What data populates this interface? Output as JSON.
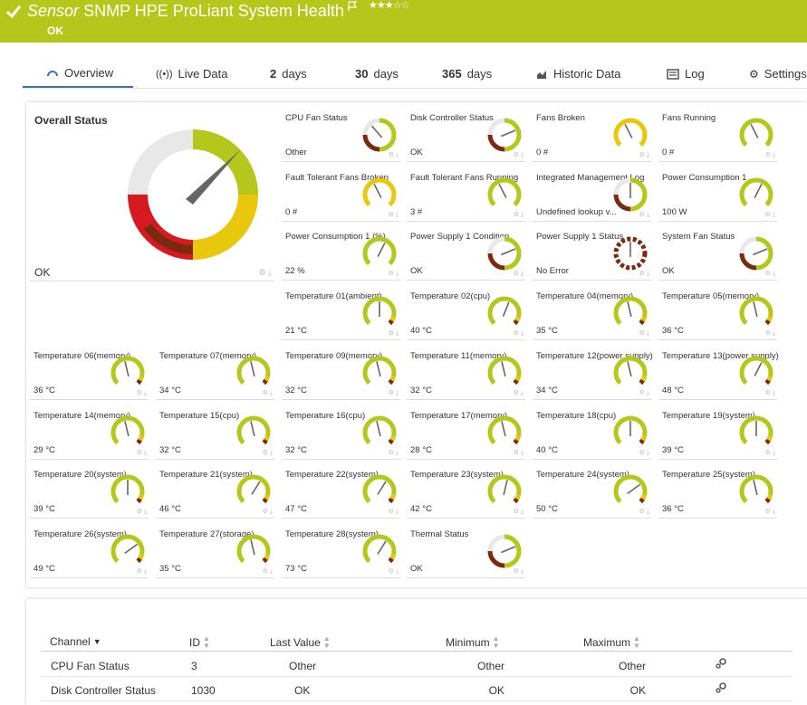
{
  "header": {
    "title_prefix": "Sensor",
    "title": "SNMP HPE ProLiant System Health",
    "status": "OK",
    "rating_stars": "★★★☆☆",
    "accent_color": "#b4c71a"
  },
  "tabs": [
    {
      "label": "Overview",
      "icon": "gauge-icon",
      "active": true
    },
    {
      "label": "Live Data",
      "icon": "live-data-icon"
    },
    {
      "num": "2",
      "label": "days"
    },
    {
      "num": "30",
      "label": "days"
    },
    {
      "num": "365",
      "label": "days"
    },
    {
      "label": "Historic Data",
      "icon": "chart-icon"
    },
    {
      "label": "Log",
      "icon": "log-icon"
    },
    {
      "label": "Settings",
      "icon": "gear-icon"
    }
  ],
  "overall": {
    "title": "Overall Status",
    "value": "OK"
  },
  "gauges": [
    {
      "name": "CPU Fan Status",
      "value": "Other",
      "style": "status",
      "needle": 0.35
    },
    {
      "name": "Disk Controller Status",
      "value": "OK",
      "style": "status",
      "needle": 0.75
    },
    {
      "name": "Fans Broken",
      "value": "0 #",
      "style": "yellow",
      "needle": 0.4
    },
    {
      "name": "Fans Running",
      "value": "0 #",
      "style": "green",
      "needle": 0.4
    },
    {
      "name": "Fault Tolerant Fans Broken",
      "value": "0 #",
      "style": "yellow",
      "needle": 0.4
    },
    {
      "name": "Fault Tolerant Fans Running",
      "value": "3 #",
      "style": "green",
      "needle": 0.4
    },
    {
      "name": "Integrated Management Log",
      "value": "Undefined lookup v...",
      "style": "status",
      "needle": 0.5
    },
    {
      "name": "Power Consumption 1",
      "value": "100 W",
      "style": "green",
      "needle": 0.6
    },
    {
      "name": "Power Consumption 1 (%)",
      "value": "22 %",
      "style": "green",
      "needle": 0.6
    },
    {
      "name": "Power Supply 1 Condition",
      "value": "OK",
      "style": "status",
      "needle": 0.75
    },
    {
      "name": "Power Supply 1 Status",
      "value": "No Error",
      "style": "dashed",
      "needle": 0.5
    },
    {
      "name": "System Fan Status",
      "value": "OK",
      "style": "status",
      "needle": 0.75
    },
    {
      "name": "Temperature 01(ambient)",
      "value": "21 °C",
      "style": "temp",
      "needle": 0.5
    },
    {
      "name": "Temperature 02(cpu)",
      "value": "40 °C",
      "style": "temp",
      "needle": 0.58
    },
    {
      "name": "Temperature 04(memory)",
      "value": "35 °C",
      "style": "temp",
      "needle": 0.45
    },
    {
      "name": "Temperature 05(memory)",
      "value": "36 °C",
      "style": "temp",
      "needle": 0.45
    },
    {
      "name": "Temperature 06(memory)",
      "value": "36 °C",
      "style": "temp",
      "needle": 0.45
    },
    {
      "name": "Temperature 07(memory)",
      "value": "34 °C",
      "style": "temp",
      "needle": 0.45
    },
    {
      "name": "Temperature 09(memory)",
      "value": "32 °C",
      "style": "temp",
      "needle": 0.45
    },
    {
      "name": "Temperature 11(memory)",
      "value": "32 °C",
      "style": "temp",
      "needle": 0.45
    },
    {
      "name": "Temperature 12(power supply)",
      "value": "34 °C",
      "style": "temp",
      "needle": 0.45
    },
    {
      "name": "Temperature 13(power supply)",
      "value": "48 °C",
      "style": "temp",
      "needle": 0.6
    },
    {
      "name": "Temperature 14(memory)",
      "value": "29 °C",
      "style": "temp",
      "needle": 0.45
    },
    {
      "name": "Temperature 15(cpu)",
      "value": "32 °C",
      "style": "temp",
      "needle": 0.45
    },
    {
      "name": "Temperature 16(cpu)",
      "value": "32 °C",
      "style": "temp",
      "needle": 0.45
    },
    {
      "name": "Temperature 17(memory)",
      "value": "28 °C",
      "style": "temp",
      "needle": 0.45
    },
    {
      "name": "Temperature 18(cpu)",
      "value": "40 °C",
      "style": "temp",
      "needle": 0.5
    },
    {
      "name": "Temperature 19(system)",
      "value": "39 °C",
      "style": "temp",
      "needle": 0.5
    },
    {
      "name": "Temperature 20(system)",
      "value": "39 °C",
      "style": "temp",
      "needle": 0.5
    },
    {
      "name": "Temperature 21(system)",
      "value": "46 °C",
      "style": "temp",
      "needle": 0.62
    },
    {
      "name": "Temperature 22(system)",
      "value": "47 °C",
      "style": "temp",
      "needle": 0.62
    },
    {
      "name": "Temperature 23(system)",
      "value": "42 °C",
      "style": "temp",
      "needle": 0.55
    },
    {
      "name": "Temperature 24(system)",
      "value": "50 °C",
      "style": "temp",
      "needle": 0.7
    },
    {
      "name": "Temperature 25(system)",
      "value": "36 °C",
      "style": "temp",
      "needle": 0.45
    },
    {
      "name": "Temperature 26(system)",
      "value": "49 °C",
      "style": "temp",
      "needle": 0.7
    },
    {
      "name": "Temperature 27(storage)",
      "value": "35 °C",
      "style": "temp",
      "needle": 0.45
    },
    {
      "name": "Temperature 28(system)",
      "value": "73 °C",
      "style": "temp",
      "needle": 0.62
    },
    {
      "name": "Thermal Status",
      "value": "OK",
      "style": "status",
      "needle": 0.75
    }
  ],
  "table": {
    "headers": {
      "channel": "Channel",
      "id": "ID",
      "last_value": "Last Value",
      "minimum": "Minimum",
      "maximum": "Maximum"
    },
    "rows": [
      {
        "channel": "CPU Fan Status",
        "id": "3",
        "last_value": "Other",
        "minimum": "Other",
        "maximum": "Other"
      },
      {
        "channel": "Disk Controller Status",
        "id": "1030",
        "last_value": "OK",
        "minimum": "OK",
        "maximum": "OK"
      }
    ]
  },
  "colors": {
    "green": "#b4c71a",
    "yellow": "#e8c80c",
    "red": "#d71920",
    "darkred": "#7a2a0e",
    "grey": "#e8e8e8",
    "needle": "#666666",
    "tab_active": "#3e6fb6"
  }
}
